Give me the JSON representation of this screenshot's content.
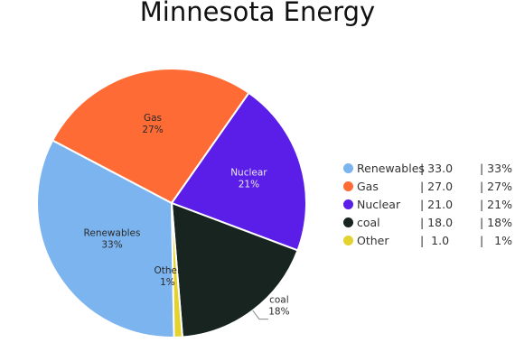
{
  "chart_data": {
    "type": "pie",
    "title": "Minnesota Energy",
    "slices": [
      {
        "label": "Renewables",
        "value": 33.0,
        "percent": "33%",
        "color": "#7cb4ef"
      },
      {
        "label": "Gas",
        "value": 27.0,
        "percent": "27%",
        "color": "#ff6b35"
      },
      {
        "label": "Nuclear",
        "value": 21.0,
        "percent": "21%",
        "color": "#5b1ee8"
      },
      {
        "label": "coal",
        "value": 18.0,
        "percent": "18%",
        "color": "#172420"
      },
      {
        "label": "Other",
        "value": 1.0,
        "percent": "1%",
        "color": "#e4d22e"
      }
    ],
    "legend": {
      "placement": "right",
      "rows": [
        {
          "label": "Renewables",
          "value": "| 33.0",
          "percent": "| 33%"
        },
        {
          "label": "Gas",
          "value": "| 27.0",
          "percent": "| 27%"
        },
        {
          "label": "Nuclear",
          "value": "| 21.0",
          "percent": "| 21%"
        },
        {
          "label": "coal",
          "value": "| 18.0",
          "percent": "| 18%"
        },
        {
          "label": "Other",
          "value": "|  1.0",
          "percent": "|   1%"
        }
      ]
    }
  }
}
